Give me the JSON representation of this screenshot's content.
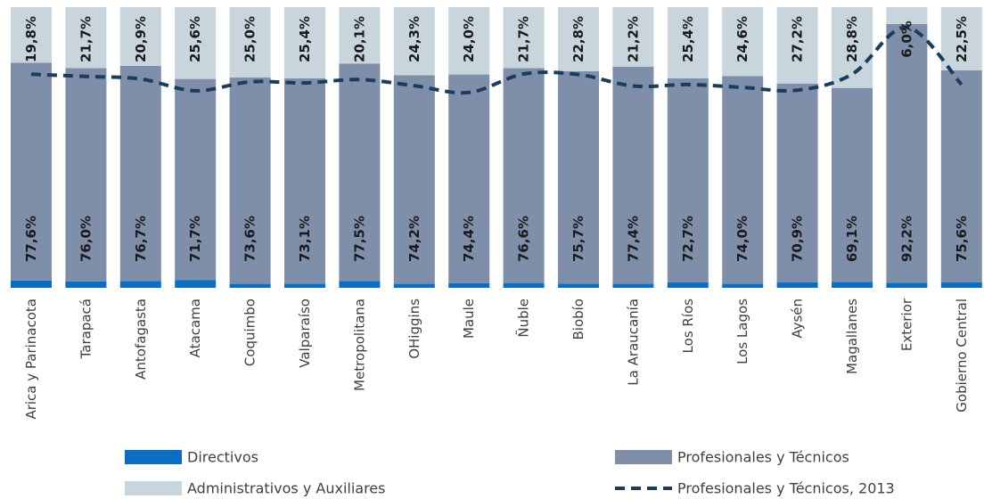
{
  "chart_data": {
    "type": "bar",
    "stacked": true,
    "ylim": [
      0,
      100
    ],
    "categories": [
      "Arica y Parinacota",
      "Tarapacá",
      "Antofagasta",
      "Atacama",
      "Coquimbo",
      "Valparaíso",
      "Metropolitana",
      "OHiggins",
      "Maule",
      "Ñuble",
      "Biobío",
      "La Araucanía",
      "Los Ríos",
      "Los Lagos",
      "Aysén",
      "Magallanes",
      "Exterior",
      "Gobierno Central"
    ],
    "series": [
      {
        "name": "Directivos",
        "color": "#0a6fc2",
        "values": [
          2.6,
          2.3,
          2.4,
          2.7,
          1.4,
          1.5,
          2.4,
          1.5,
          1.6,
          1.7,
          1.5,
          1.4,
          1.9,
          1.4,
          1.9,
          2.1,
          1.8,
          1.9
        ]
      },
      {
        "name": "Profesionales y Técnicos",
        "color": "#7f8ea9",
        "values": [
          77.6,
          76.0,
          76.7,
          71.7,
          73.6,
          73.1,
          77.5,
          74.2,
          74.4,
          76.6,
          75.7,
          77.4,
          72.7,
          74.0,
          70.9,
          69.1,
          92.2,
          75.6
        ]
      },
      {
        "name": "Administrativos y Auxiliares",
        "color": "#c9d5dc",
        "values": [
          19.8,
          21.7,
          20.9,
          25.6,
          25.0,
          25.4,
          20.1,
          24.3,
          24.0,
          21.7,
          22.8,
          21.2,
          25.4,
          24.6,
          27.2,
          28.8,
          6.0,
          22.5
        ]
      }
    ],
    "line": {
      "name": "Profesionales y Técnicos, 2013",
      "color": "#1b3d5c",
      "values": [
        73.5,
        73.0,
        72.0,
        67.5,
        72.0,
        71.5,
        71.8,
        70.5,
        68.0,
        74.5,
        74.5,
        70.5,
        70.5,
        70.0,
        68.5,
        74.0,
        91.0,
        70.5
      ]
    },
    "labels_pt": [
      "77,6%",
      "76,0%",
      "76,7%",
      "71,7%",
      "73,6%",
      "73,1%",
      "77,5%",
      "74,2%",
      "74,4%",
      "76,6%",
      "75,7%",
      "77,4%",
      "72,7%",
      "74,0%",
      "70,9%",
      "69,1%",
      "92,2%",
      "75,6%"
    ],
    "labels_adm": [
      "19,8%",
      "21,7%",
      "20,9%",
      "25,6%",
      "25,0%",
      "25,4%",
      "20,1%",
      "24,3%",
      "24,0%",
      "21,7%",
      "22,8%",
      "21,2%",
      "25,4%",
      "24,6%",
      "27,2%",
      "28,8%",
      "6,0%",
      "22,5%"
    ],
    "legend": [
      {
        "label": "Directivos",
        "kind": "bar",
        "color": "#0a6fc2"
      },
      {
        "label": "Profesionales y Técnicos",
        "kind": "bar",
        "color": "#7f8ea9"
      },
      {
        "label": "Administrativos y Auxiliares",
        "kind": "bar",
        "color": "#c9d5dc"
      },
      {
        "label": "Profesionales y Técnicos, 2013",
        "kind": "line",
        "color": "#1b3d5c"
      }
    ],
    "legend_position": "bottom",
    "grid": false
  }
}
